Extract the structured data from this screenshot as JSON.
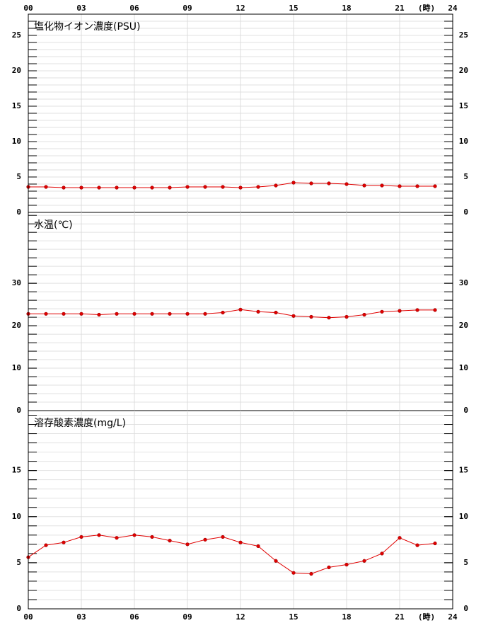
{
  "chart_data": [
    {
      "type": "line",
      "title": "塩化物イオン濃度(PSU)",
      "x_unit": "(時)",
      "x": [
        0,
        1,
        2,
        3,
        4,
        5,
        6,
        7,
        8,
        9,
        10,
        11,
        12,
        13,
        14,
        15,
        16,
        17,
        18,
        19,
        20,
        21,
        22,
        23
      ],
      "xlim": [
        0,
        24
      ],
      "xticks": [
        {
          "value": 0,
          "label": "00"
        },
        {
          "value": 3,
          "label": "03"
        },
        {
          "value": 6,
          "label": "06"
        },
        {
          "value": 9,
          "label": "09"
        },
        12,
        15,
        18,
        21,
        24
      ],
      "ylim": [
        0,
        28
      ],
      "yticks": [
        0,
        5,
        10,
        15,
        20,
        25
      ],
      "ygrid_step": 1,
      "grid": true,
      "series": [
        {
          "color": "#e00000",
          "values": [
            3.6,
            3.6,
            3.5,
            3.5,
            3.5,
            3.5,
            3.5,
            3.5,
            3.5,
            3.6,
            3.6,
            3.6,
            3.5,
            3.6,
            3.8,
            4.2,
            4.1,
            4.1,
            4.0,
            3.8,
            3.8,
            3.7,
            3.7,
            3.7
          ]
        }
      ]
    },
    {
      "type": "line",
      "title": "水温(℃)",
      "x": [
        0,
        1,
        2,
        3,
        4,
        5,
        6,
        7,
        8,
        9,
        10,
        11,
        12,
        13,
        14,
        15,
        16,
        17,
        18,
        19,
        20,
        21,
        22,
        23
      ],
      "xlim": [
        0,
        24
      ],
      "xticks": [
        {
          "value": 0,
          "label": "00"
        },
        {
          "value": 3,
          "label": "03"
        },
        {
          "value": 6,
          "label": "06"
        },
        {
          "value": 9,
          "label": "09"
        },
        12,
        15,
        18,
        21,
        24
      ],
      "ylim": [
        0,
        46.7
      ],
      "yticks": [
        0,
        10,
        20,
        30
      ],
      "ygrid_step": 2,
      "grid": true,
      "series": [
        {
          "color": "#e00000",
          "values": [
            22.8,
            22.8,
            22.8,
            22.8,
            22.6,
            22.8,
            22.8,
            22.8,
            22.8,
            22.8,
            22.8,
            23.1,
            23.8,
            23.3,
            23.1,
            22.3,
            22.1,
            21.9,
            22.1,
            22.6,
            23.3,
            23.5,
            23.7,
            23.7
          ]
        }
      ]
    },
    {
      "type": "line",
      "title": "溶存酸素濃度(mg/L)",
      "x_unit": "(時)",
      "x": [
        0,
        1,
        2,
        3,
        4,
        5,
        6,
        7,
        8,
        9,
        10,
        11,
        12,
        13,
        14,
        15,
        16,
        17,
        18,
        19,
        20,
        21,
        22,
        23
      ],
      "xlim": [
        0,
        24
      ],
      "xticks": [
        {
          "value": 0,
          "label": "00"
        },
        {
          "value": 3,
          "label": "03"
        },
        {
          "value": 6,
          "label": "06"
        },
        {
          "value": 9,
          "label": "09"
        },
        12,
        15,
        18,
        21,
        24
      ],
      "ylim": [
        0,
        21.5
      ],
      "yticks": [
        0,
        5,
        10,
        15
      ],
      "ygrid_step": 1,
      "grid": true,
      "series": [
        {
          "color": "#e00000",
          "values": [
            5.6,
            6.9,
            7.2,
            7.8,
            8.0,
            7.7,
            8.0,
            7.8,
            7.4,
            7.0,
            7.5,
            7.8,
            7.2,
            6.8,
            5.2,
            3.9,
            3.8,
            4.5,
            4.8,
            5.2,
            6.0,
            7.7,
            6.9,
            7.1
          ]
        }
      ]
    }
  ]
}
